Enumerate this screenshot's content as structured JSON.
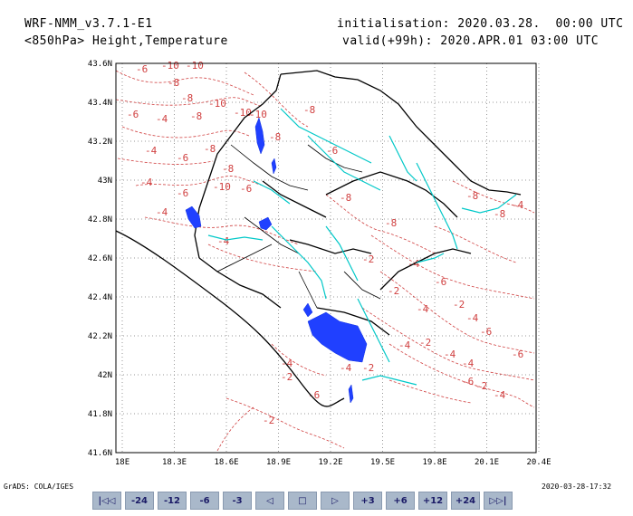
{
  "header": {
    "model": "WRF-NMM_v3.7.1-E1",
    "field": "<850hPa> Height,Temperature",
    "init": "initialisation: 2020.03.28.  00:00 UTC",
    "valid": "valid(+99h): 2020.APR.01 03:00 UTC"
  },
  "footer": {
    "credit": "GrADS: COLA/IGES",
    "timestamp": "2020-03-28-17:32"
  },
  "map": {
    "lat_labels": [
      "43.6N",
      "43.4N",
      "43.2N",
      "43N",
      "42.8N",
      "42.6N",
      "42.4N",
      "42.2N",
      "42N",
      "41.8N",
      "41.6N"
    ],
    "lon_labels": [
      "18E",
      "18.3E",
      "18.6E",
      "18.9E",
      "19.2E",
      "19.5E",
      "19.8E",
      "20.1E",
      "20.4E"
    ],
    "contour_labels": [
      "-6",
      "-10",
      "-10",
      "-8",
      "-8",
      "-4",
      "-6",
      "-10",
      "-8",
      "-10",
      "-10",
      "-4",
      "-6",
      "-8",
      "-4",
      "-8",
      "-6",
      "-10",
      "-4",
      "-6",
      "-4",
      "-8",
      "-8",
      "-6",
      "-8",
      "-8",
      "-8",
      "-8",
      "-4",
      "-2",
      "-4",
      "-2",
      "-6",
      "-4",
      "-2",
      "-4",
      "-6",
      "-4",
      "-2",
      "-4",
      "-4",
      "-6",
      "-2",
      "-2",
      "-4",
      "-6",
      "-2",
      "-2",
      "-4",
      "-6",
      "-4"
    ],
    "colors": {
      "temperature_contour": "#d04040",
      "rivers": "#00c8c8",
      "lakes": "#2040ff",
      "borders": "#000000",
      "grid": "#999999"
    }
  },
  "nav": {
    "buttons": [
      "|◁◁",
      "-24",
      "-12",
      "-6",
      "-3",
      "◁",
      "□",
      "▷",
      "+3",
      "+6",
      "+12",
      "+24",
      "▷▷|"
    ]
  }
}
